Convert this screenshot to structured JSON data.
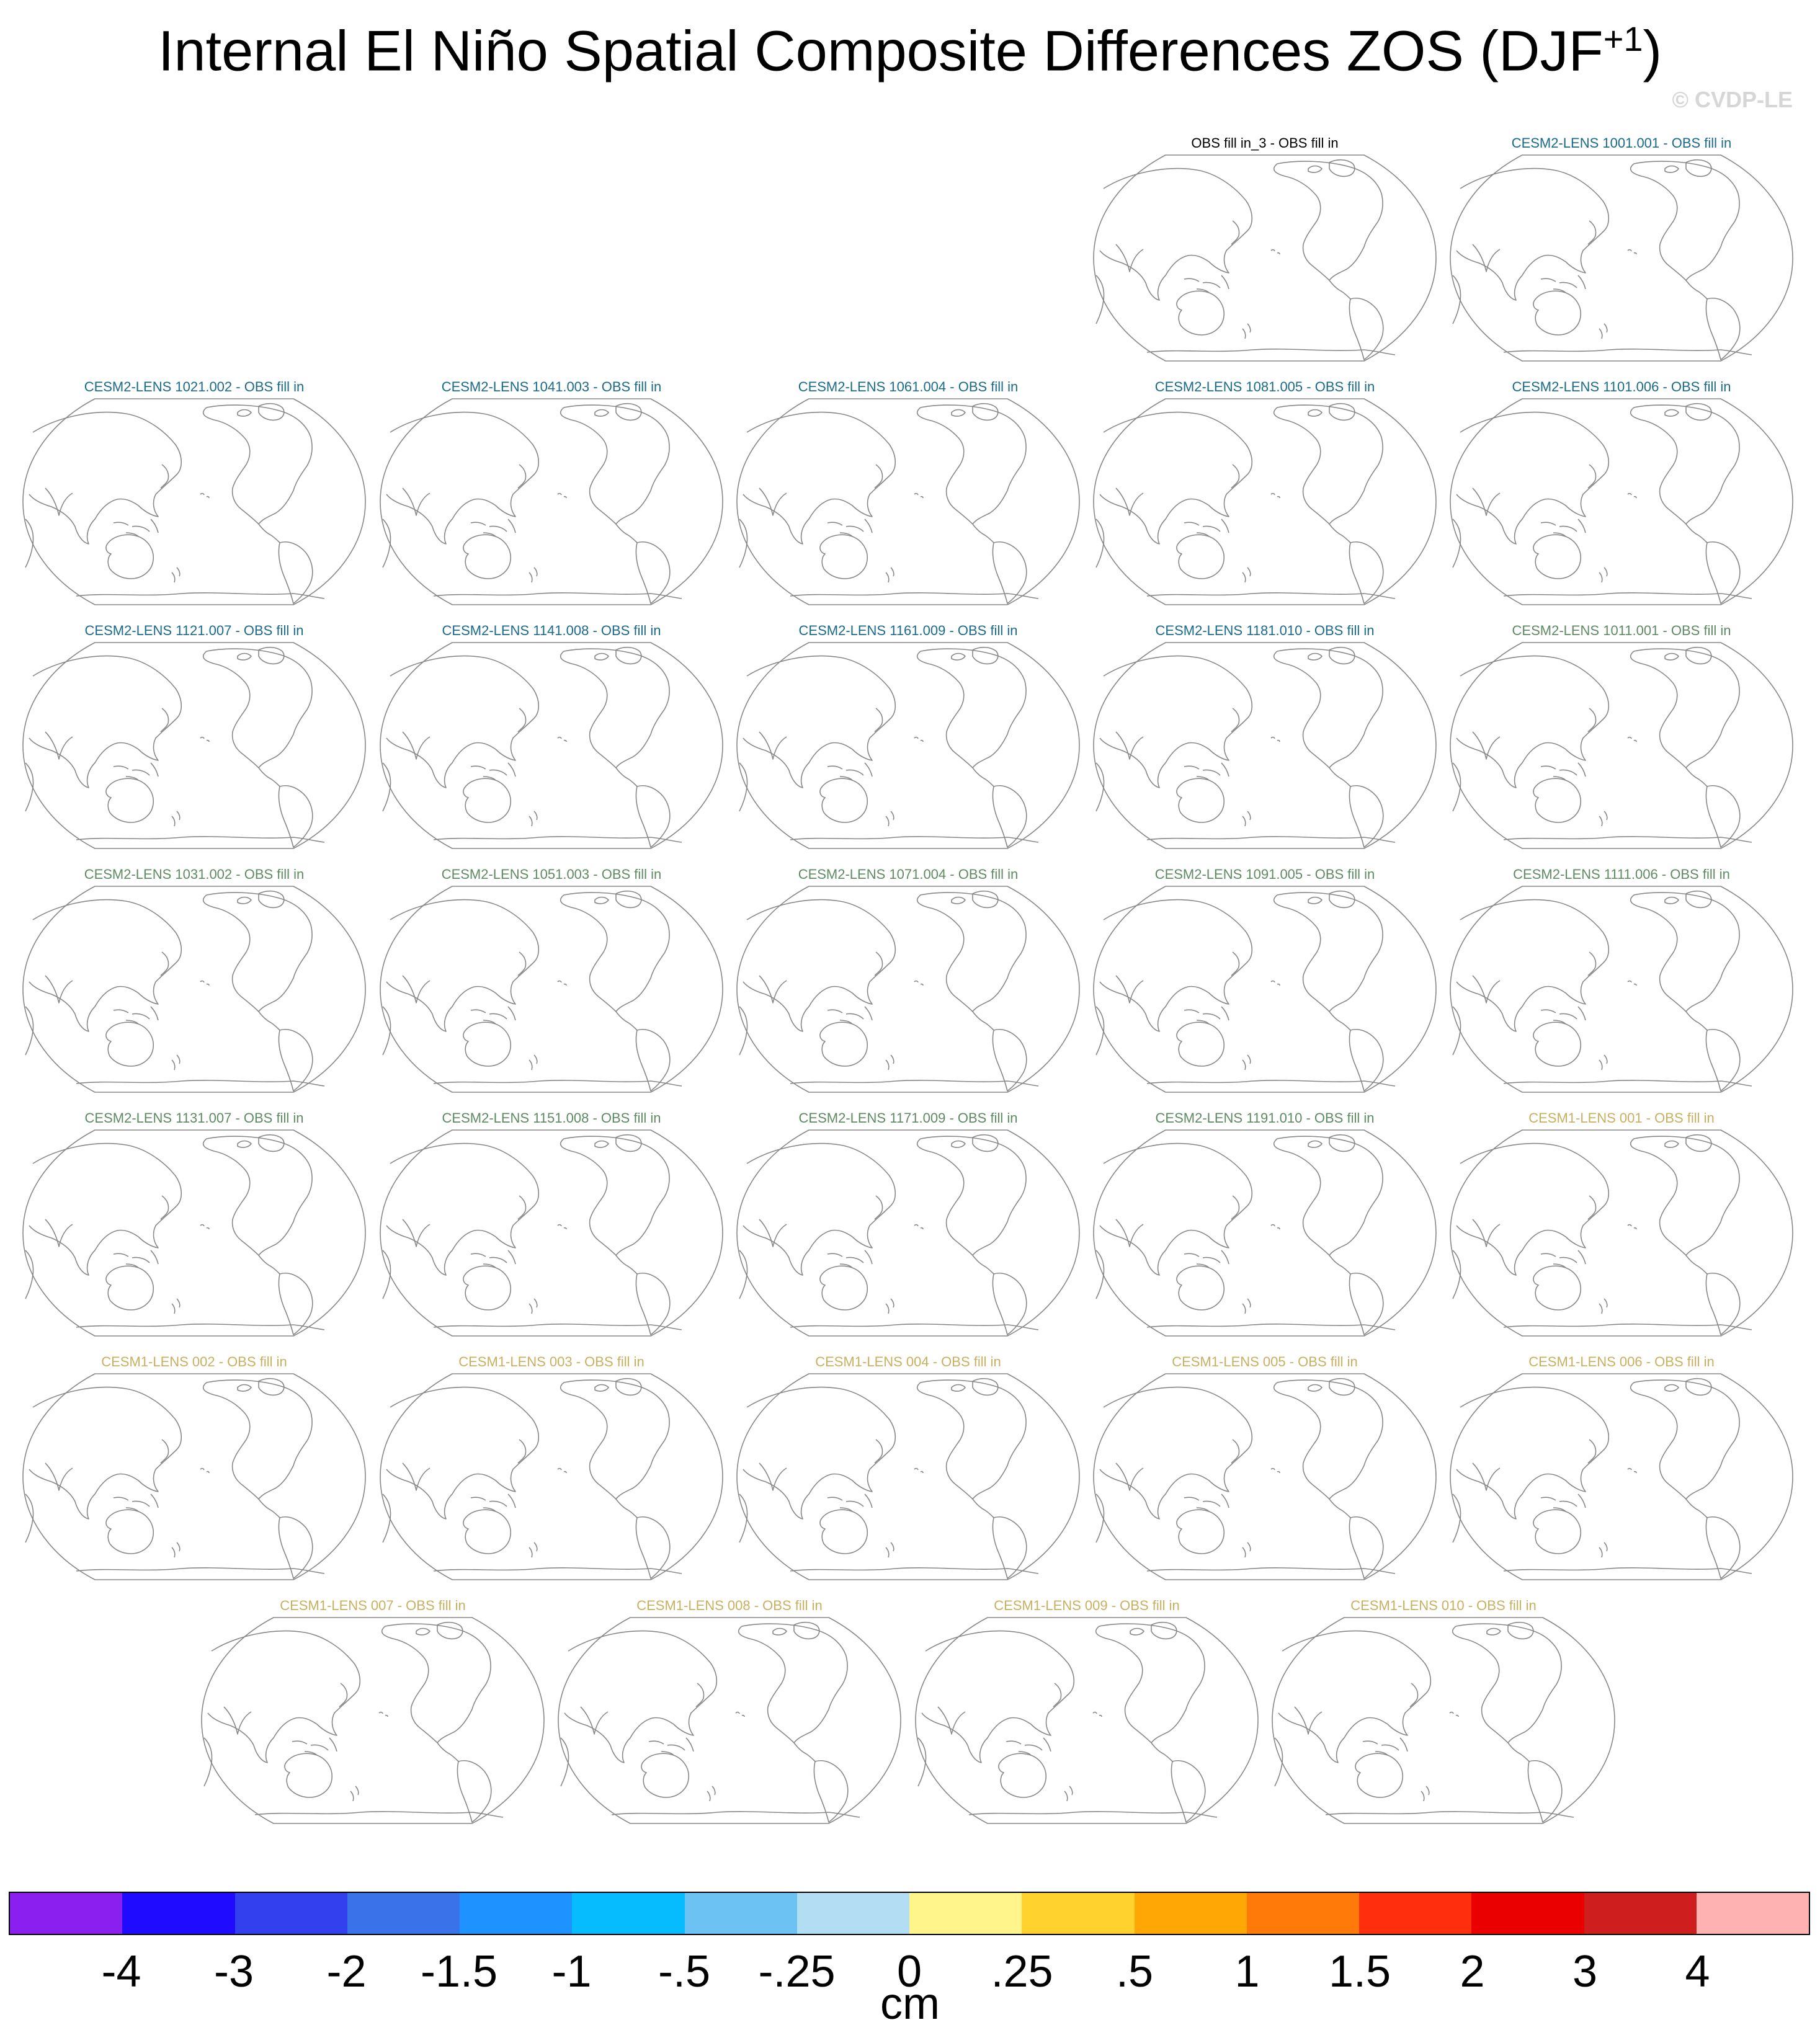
{
  "title": "Internal El Niño Spatial Composite Differences ZOS (DJF",
  "title_sup": "+1",
  "title_close": ")",
  "watermark": "© CVDP-LE",
  "colors": {
    "obs": "#000000",
    "cesm2_a": "#1a6a8a",
    "cesm2_b": "#5e8a62",
    "cesm1": "#c8b060",
    "coast": "#888888"
  },
  "panel_rows": [
    {
      "panels": [
        {
          "label": "OBS fill in_3 - OBS fill in",
          "group": "obs"
        },
        {
          "label": "CESM2-LENS 1001.001 - OBS fill in",
          "group": "cesm2_a"
        }
      ]
    },
    {
      "panels": [
        {
          "label": "CESM2-LENS 1021.002 - OBS fill in",
          "group": "cesm2_a"
        },
        {
          "label": "CESM2-LENS 1041.003 - OBS fill in",
          "group": "cesm2_a"
        },
        {
          "label": "CESM2-LENS 1061.004 - OBS fill in",
          "group": "cesm2_a"
        },
        {
          "label": "CESM2-LENS 1081.005 - OBS fill in",
          "group": "cesm2_a"
        },
        {
          "label": "CESM2-LENS 1101.006 - OBS fill in",
          "group": "cesm2_a"
        }
      ]
    },
    {
      "panels": [
        {
          "label": "CESM2-LENS 1121.007 - OBS fill in",
          "group": "cesm2_a"
        },
        {
          "label": "CESM2-LENS 1141.008 - OBS fill in",
          "group": "cesm2_a"
        },
        {
          "label": "CESM2-LENS 1161.009 - OBS fill in",
          "group": "cesm2_a"
        },
        {
          "label": "CESM2-LENS 1181.010 - OBS fill in",
          "group": "cesm2_a"
        },
        {
          "label": "CESM2-LENS 1011.001 - OBS fill in",
          "group": "cesm2_b"
        }
      ]
    },
    {
      "panels": [
        {
          "label": "CESM2-LENS 1031.002 - OBS fill in",
          "group": "cesm2_b"
        },
        {
          "label": "CESM2-LENS 1051.003 - OBS fill in",
          "group": "cesm2_b"
        },
        {
          "label": "CESM2-LENS 1071.004 - OBS fill in",
          "group": "cesm2_b"
        },
        {
          "label": "CESM2-LENS 1091.005 - OBS fill in",
          "group": "cesm2_b"
        },
        {
          "label": "CESM2-LENS 1111.006 - OBS fill in",
          "group": "cesm2_b"
        }
      ]
    },
    {
      "panels": [
        {
          "label": "CESM2-LENS 1131.007 - OBS fill in",
          "group": "cesm2_b"
        },
        {
          "label": "CESM2-LENS 1151.008 - OBS fill in",
          "group": "cesm2_b"
        },
        {
          "label": "CESM2-LENS 1171.009 - OBS fill in",
          "group": "cesm2_b"
        },
        {
          "label": "CESM2-LENS 1191.010 - OBS fill in",
          "group": "cesm2_b"
        },
        {
          "label": "CESM1-LENS 001 - OBS fill in",
          "group": "cesm1"
        }
      ]
    },
    {
      "panels": [
        {
          "label": "CESM1-LENS 002 - OBS fill in",
          "group": "cesm1"
        },
        {
          "label": "CESM1-LENS 003 - OBS fill in",
          "group": "cesm1"
        },
        {
          "label": "CESM1-LENS 004 - OBS fill in",
          "group": "cesm1"
        },
        {
          "label": "CESM1-LENS 005 - OBS fill in",
          "group": "cesm1"
        },
        {
          "label": "CESM1-LENS 006 - OBS fill in",
          "group": "cesm1"
        }
      ]
    },
    {
      "panels": [
        {
          "label": "CESM1-LENS 007 - OBS fill in",
          "group": "cesm1"
        },
        {
          "label": "CESM1-LENS 008 - OBS fill in",
          "group": "cesm1"
        },
        {
          "label": "CESM1-LENS 009 - OBS fill in",
          "group": "cesm1"
        },
        {
          "label": "CESM1-LENS 010 - OBS fill in",
          "group": "cesm1"
        }
      ]
    }
  ],
  "colorbar": {
    "colors": [
      "#8a1fef",
      "#1f0bff",
      "#3340ee",
      "#3a72ea",
      "#1e93ff",
      "#06bcff",
      "#6cc2f2",
      "#b3ddf2",
      "#fff58a",
      "#ffd22e",
      "#ffa705",
      "#ff7a08",
      "#ff2f0e",
      "#ea0000",
      "#cf1e1e",
      "#ffb2b2"
    ],
    "labels": [
      "-4",
      "-3",
      "-2",
      "-1.5",
      "-1",
      "-.5",
      "-.25",
      "0",
      ".25",
      ".5",
      "1",
      "1.5",
      "2",
      "3",
      "4"
    ],
    "units": "cm"
  }
}
